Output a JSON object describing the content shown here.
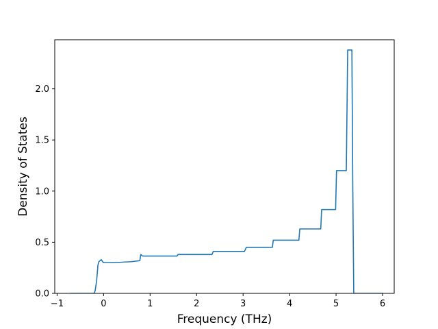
{
  "chart_data": {
    "type": "line",
    "title": "",
    "xlabel": "Frequency (THz)",
    "ylabel": "Density of States",
    "xlim": [
      -1.05,
      6.25
    ],
    "ylim": [
      0.0,
      2.48
    ],
    "xticks": [
      -1,
      0,
      1,
      2,
      3,
      4,
      5,
      6
    ],
    "yticks": [
      0.0,
      0.5,
      1.0,
      1.5,
      2.0
    ],
    "xtick_labels": [
      "−1",
      "0",
      "1",
      "2",
      "3",
      "4",
      "5",
      "6"
    ],
    "ytick_labels": [
      "0.0",
      "0.5",
      "1.0",
      "1.5",
      "2.0"
    ],
    "grid": false,
    "legend": "none",
    "line_color": "#1f77b4",
    "series": [
      {
        "x": [
          -0.72,
          -0.2,
          -0.18,
          -0.15,
          -0.12,
          -0.1,
          -0.05,
          -0.02,
          0.0,
          0.2,
          0.4,
          0.6,
          0.78,
          0.8,
          0.84,
          1.58,
          1.6,
          1.64,
          2.33,
          2.36,
          2.4,
          3.03,
          3.07,
          3.1,
          3.63,
          3.65,
          3.66,
          4.2,
          4.22,
          4.23,
          4.67,
          4.69,
          4.7,
          4.99,
          5.01,
          5.02,
          5.22,
          5.25,
          5.26,
          5.34,
          5.36,
          5.38,
          6.0
        ],
        "y": [
          0.0,
          0.0,
          0.03,
          0.12,
          0.28,
          0.31,
          0.33,
          0.31,
          0.3,
          0.3,
          0.305,
          0.31,
          0.32,
          0.38,
          0.365,
          0.365,
          0.38,
          0.38,
          0.38,
          0.41,
          0.41,
          0.41,
          0.45,
          0.45,
          0.45,
          0.52,
          0.52,
          0.52,
          0.63,
          0.63,
          0.63,
          0.82,
          0.82,
          0.82,
          1.2,
          1.2,
          1.2,
          2.38,
          2.38,
          2.38,
          1.0,
          0.0,
          0.0
        ]
      }
    ]
  }
}
